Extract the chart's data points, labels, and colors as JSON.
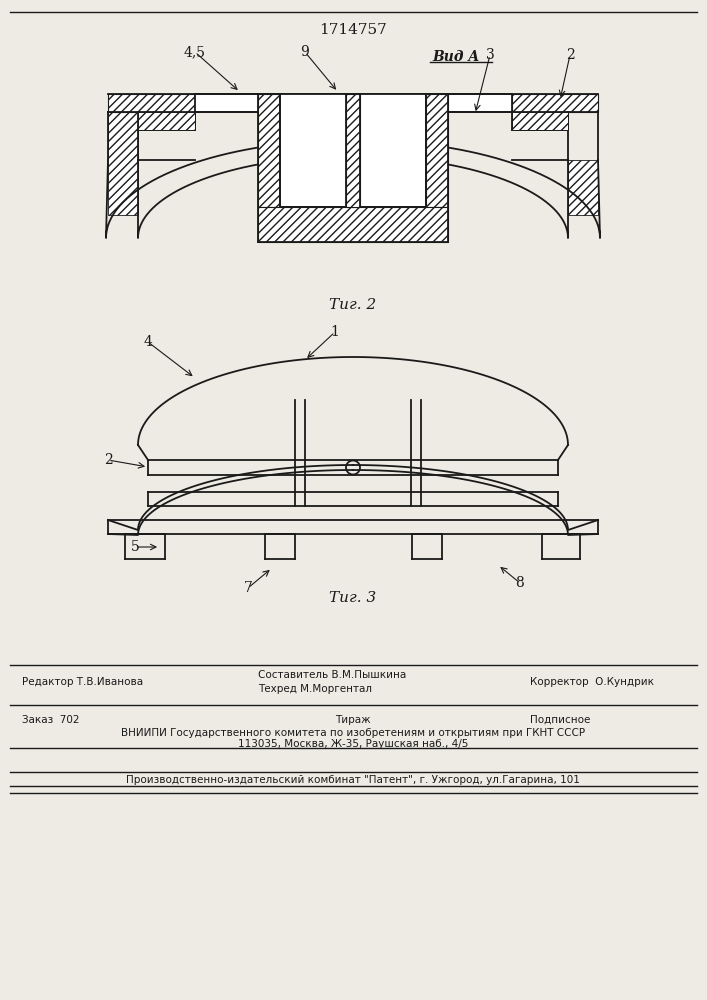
{
  "patent_number": "1714757",
  "fig2_label": "Τиг. 2",
  "fig3_label": "Τиг. 3",
  "vid_a_label": "Вид A",
  "labels": {
    "label_45": "4,5",
    "label_9": "9",
    "label_3": "3",
    "label_2_top": "2",
    "label_1": "1",
    "label_4": "4",
    "label_2_bot": "2",
    "label_5": "5",
    "label_7": "7",
    "label_8": "8"
  },
  "footer": {
    "line1_left": "Редактор Т.В.Иванова",
    "line1_center1": "Составитель В.М.Пышкина",
    "line1_center2": "Техред М.Моргентал",
    "line1_right": "Корректор  О.Кундрик",
    "line2_left": "Заказ  702",
    "line2_center": "Тираж",
    "line2_right": "Подписное",
    "line3": "ВНИИПИ Государственного комитета по изобретениям и открытиям при ГКНТ СССР",
    "line4": "113035, Москва, Ж-35, Раушская наб., 4/5",
    "line5": "Производственно-издательский комбинат \"Патент\", г. Ужгород, ул.Гагарина, 101"
  },
  "bg_color": "#eeebe4",
  "line_color": "#1a1a1a"
}
